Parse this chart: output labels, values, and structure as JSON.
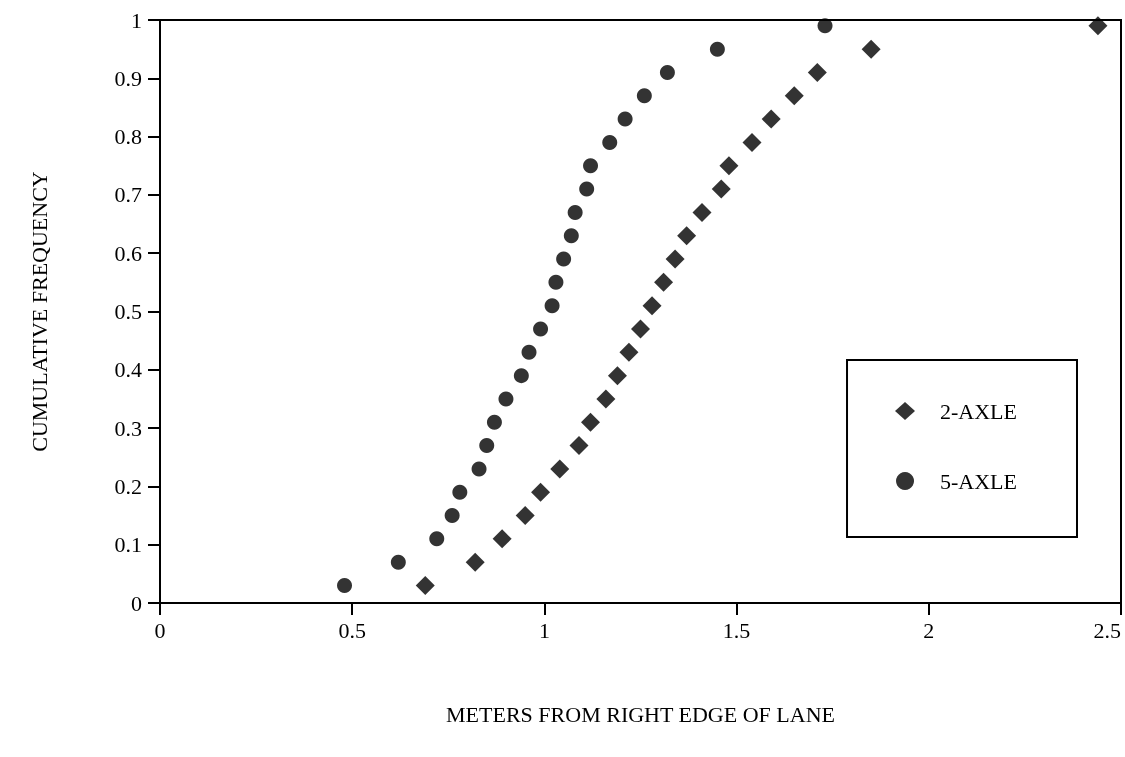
{
  "chart_data": {
    "type": "scatter",
    "xlabel": "METERS FROM RIGHT EDGE OF LANE",
    "ylabel": "CUMULATIVE FREQUENCY",
    "xlim": [
      0,
      2.5
    ],
    "xticks": [
      0,
      0.5,
      1,
      1.5,
      2,
      2.5
    ],
    "ylim": [
      0,
      1
    ],
    "yticks": [
      0,
      0.1,
      0.2,
      0.3,
      0.4,
      0.5,
      0.6,
      0.7,
      0.8,
      0.9,
      1
    ],
    "grid": false,
    "legend": "right",
    "series": [
      {
        "name": "2-AXLE",
        "color": "#000000",
        "marker": "diamond",
        "x": [
          0.69,
          0.82,
          0.89,
          0.95,
          0.99,
          1.04,
          1.09,
          1.12,
          1.16,
          1.19,
          1.22,
          1.25,
          1.28,
          1.31,
          1.34,
          1.37,
          1.41,
          1.46,
          1.48,
          1.54,
          1.59,
          1.65,
          1.71,
          1.85,
          2.44
        ],
        "values": [
          0.03,
          0.07,
          0.11,
          0.15,
          0.19,
          0.23,
          0.27,
          0.31,
          0.35,
          0.39,
          0.43,
          0.47,
          0.51,
          0.55,
          0.59,
          0.63,
          0.67,
          0.71,
          0.75,
          0.79,
          0.83,
          0.87,
          0.91,
          0.95,
          0.99
        ]
      },
      {
        "name": "5-AXLE",
        "color": "#000000",
        "marker": "circle",
        "x": [
          0.48,
          0.62,
          0.72,
          0.76,
          0.78,
          0.83,
          0.85,
          0.87,
          0.9,
          0.94,
          0.96,
          0.99,
          1.02,
          1.03,
          1.05,
          1.07,
          1.08,
          1.11,
          1.12,
          1.17,
          1.21,
          1.26,
          1.32,
          1.45,
          1.73
        ],
        "values": [
          0.03,
          0.07,
          0.11,
          0.15,
          0.19,
          0.23,
          0.27,
          0.31,
          0.35,
          0.39,
          0.43,
          0.47,
          0.51,
          0.55,
          0.59,
          0.63,
          0.67,
          0.71,
          0.75,
          0.79,
          0.83,
          0.87,
          0.91,
          0.95,
          0.99
        ]
      }
    ]
  }
}
